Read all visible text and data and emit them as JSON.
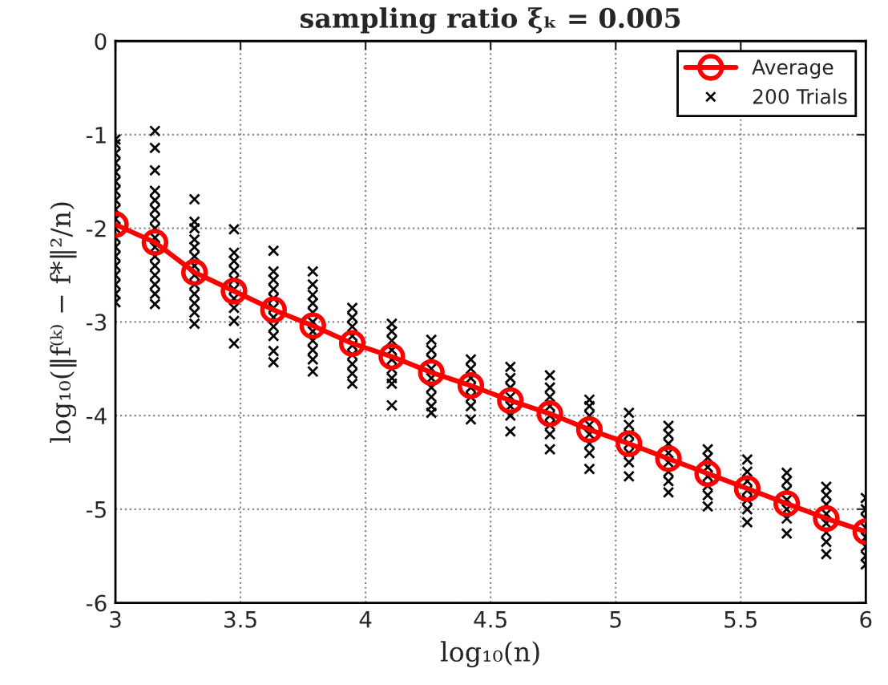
{
  "chart_data": {
    "type": "line",
    "title": "sampling ratio ξₖ = 0.005",
    "xlabel": "log₁₀(n)",
    "ylabel": "log₁₀(‖f⁽ᵏ⁾ − f*‖²/n)",
    "xlim": [
      3,
      6
    ],
    "xticks": [
      3,
      3.5,
      4,
      4.5,
      5,
      5.5,
      6
    ],
    "ylim": [
      -6,
      0
    ],
    "yticks": [
      -6,
      -5,
      -4,
      -3,
      -2,
      -1,
      0
    ],
    "grid": true,
    "legend": "top right",
    "series": [
      {
        "name": "Average",
        "color": "#ff0000",
        "marker": "circle",
        "line_style": "solid",
        "x": [
          3,
          3.158,
          3.316,
          3.474,
          3.632,
          3.789,
          3.947,
          4.105,
          4.263,
          4.421,
          4.579,
          4.737,
          4.895,
          5.053,
          5.211,
          5.368,
          5.526,
          5.684,
          5.842,
          6.0
        ],
        "values": [
          -1.96,
          -2.15,
          -2.47,
          -2.67,
          -2.87,
          -3.04,
          -3.23,
          -3.37,
          -3.54,
          -3.68,
          -3.84,
          -3.98,
          -4.15,
          -4.3,
          -4.46,
          -4.62,
          -4.78,
          -4.94,
          -5.1,
          -5.24
        ]
      },
      {
        "name": "200 Trials",
        "type": "scatter",
        "color": "#000000",
        "marker": "cross",
        "x": [
          3,
          3,
          3,
          3,
          3,
          3,
          3,
          3,
          3,
          3,
          3,
          3,
          3,
          3,
          3,
          3,
          3,
          3,
          3,
          3.158,
          3.158,
          3.158,
          3.158,
          3.158,
          3.158,
          3.158,
          3.158,
          3.158,
          3.158,
          3.158,
          3.158,
          3.158,
          3.158,
          3.158,
          3.158,
          3.316,
          3.316,
          3.316,
          3.316,
          3.316,
          3.316,
          3.316,
          3.316,
          3.316,
          3.316,
          3.316,
          3.316,
          3.316,
          3.474,
          3.474,
          3.474,
          3.474,
          3.474,
          3.474,
          3.474,
          3.474,
          3.474,
          3.474,
          3.632,
          3.632,
          3.632,
          3.632,
          3.632,
          3.632,
          3.632,
          3.632,
          3.632,
          3.632,
          3.632,
          3.789,
          3.789,
          3.789,
          3.789,
          3.789,
          3.789,
          3.789,
          3.789,
          3.789,
          3.789,
          3.789,
          3.947,
          3.947,
          3.947,
          3.947,
          3.947,
          3.947,
          3.947,
          3.947,
          3.947,
          4.105,
          4.105,
          4.105,
          4.105,
          4.105,
          4.105,
          4.105,
          4.105,
          4.105,
          4.263,
          4.263,
          4.263,
          4.263,
          4.263,
          4.263,
          4.263,
          4.263,
          4.263,
          4.421,
          4.421,
          4.421,
          4.421,
          4.421,
          4.421,
          4.421,
          4.579,
          4.579,
          4.579,
          4.579,
          4.579,
          4.579,
          4.579,
          4.737,
          4.737,
          4.737,
          4.737,
          4.737,
          4.737,
          4.737,
          4.737,
          4.895,
          4.895,
          4.895,
          4.895,
          4.895,
          4.895,
          4.895,
          4.895,
          5.053,
          5.053,
          5.053,
          5.053,
          5.053,
          5.053,
          5.053,
          5.211,
          5.211,
          5.211,
          5.211,
          5.211,
          5.211,
          5.211,
          5.211,
          5.368,
          5.368,
          5.368,
          5.368,
          5.368,
          5.368,
          5.368,
          5.526,
          5.526,
          5.526,
          5.526,
          5.526,
          5.526,
          5.526,
          5.684,
          5.684,
          5.684,
          5.684,
          5.684,
          5.684,
          5.684,
          5.842,
          5.842,
          5.842,
          5.842,
          5.842,
          5.842,
          5.842,
          5.842,
          6.0,
          6.0,
          6.0,
          6.0,
          6.0,
          6.0,
          6.0,
          6.0
        ],
        "values": [
          -1.05,
          -1.1,
          -1.2,
          -1.3,
          -1.4,
          -1.5,
          -1.6,
          -1.7,
          -1.8,
          -1.9,
          -2.0,
          -2.1,
          -2.2,
          -2.3,
          -2.4,
          -2.5,
          -2.6,
          -2.7,
          -2.79,
          -0.96,
          -1.14,
          -1.38,
          -1.6,
          -1.7,
          -1.8,
          -1.9,
          -2.0,
          -2.1,
          -2.2,
          -2.3,
          -2.4,
          -2.5,
          -2.6,
          -2.7,
          -2.81,
          -1.69,
          -1.93,
          -2.0,
          -2.12,
          -2.2,
          -2.3,
          -2.4,
          -2.5,
          -2.6,
          -2.7,
          -2.8,
          -2.9,
          -3.02,
          -2.01,
          -2.26,
          -2.35,
          -2.45,
          -2.55,
          -2.65,
          -2.75,
          -2.85,
          -2.99,
          -3.23,
          -2.24,
          -2.46,
          -2.55,
          -2.65,
          -2.75,
          -2.85,
          -2.95,
          -3.05,
          -3.15,
          -3.31,
          -3.43,
          -2.46,
          -2.6,
          -2.71,
          -2.8,
          -2.9,
          -3.0,
          -3.1,
          -3.2,
          -3.3,
          -3.4,
          -3.53,
          -2.85,
          -2.95,
          -3.05,
          -3.15,
          -3.25,
          -3.35,
          -3.45,
          -3.55,
          -3.66,
          -3.02,
          -3.1,
          -3.2,
          -3.3,
          -3.4,
          -3.5,
          -3.6,
          -3.66,
          -3.89,
          -3.19,
          -3.3,
          -3.4,
          -3.5,
          -3.6,
          -3.7,
          -3.8,
          -3.9,
          -3.97,
          -3.4,
          -3.5,
          -3.6,
          -3.7,
          -3.8,
          -3.9,
          -4.04,
          -3.48,
          -3.6,
          -3.7,
          -3.8,
          -3.9,
          -4.0,
          -4.17,
          -3.57,
          -3.7,
          -3.8,
          -3.9,
          -4.0,
          -4.1,
          -4.2,
          -4.36,
          -3.83,
          -3.9,
          -4.0,
          -4.1,
          -4.2,
          -4.3,
          -4.4,
          -4.57,
          -3.97,
          -4.1,
          -4.2,
          -4.3,
          -4.4,
          -4.5,
          -4.65,
          -4.11,
          -4.2,
          -4.3,
          -4.4,
          -4.5,
          -4.6,
          -4.7,
          -4.82,
          -4.36,
          -4.45,
          -4.55,
          -4.65,
          -4.75,
          -4.85,
          -4.97,
          -4.47,
          -4.6,
          -4.7,
          -4.8,
          -4.9,
          -5.0,
          -5.14,
          -4.61,
          -4.7,
          -4.8,
          -4.9,
          -5.0,
          -5.1,
          -5.26,
          -4.76,
          -4.85,
          -4.95,
          -5.05,
          -5.15,
          -5.25,
          -5.35,
          -5.48,
          -4.88,
          -5.0,
          -5.1,
          -5.2,
          -5.3,
          -5.4,
          -5.5,
          -5.59
        ]
      }
    ]
  }
}
